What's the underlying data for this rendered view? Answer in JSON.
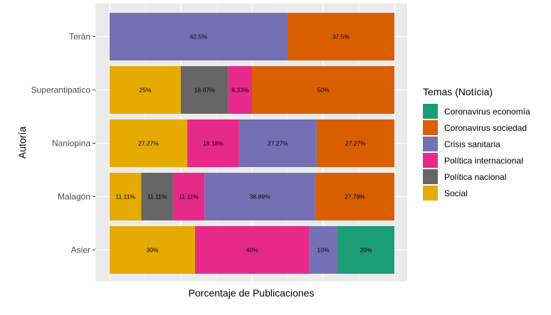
{
  "chart_data": {
    "type": "bar",
    "orientation": "horizontal",
    "stacked": true,
    "xlabel": "Porcentaje de Publicaciones",
    "ylabel": "Autoría",
    "xlim": [
      0,
      1
    ],
    "grid": true,
    "legend_position": "right",
    "legend_title": "Temas (Notícia)",
    "categories": [
      "Terán",
      "Superantipatico",
      "Naniopina",
      "Malagón",
      "Asier"
    ],
    "series": [
      {
        "name": "Coronavirus economía",
        "color": "#1b9e77",
        "values": [
          0,
          0,
          0,
          0,
          0.2
        ],
        "labels": [
          "",
          "",
          "",
          "",
          "20%"
        ]
      },
      {
        "name": "Coronavirus sociedad",
        "color": "#d95f02",
        "values": [
          0.375,
          0.5,
          0.2727,
          0.2778,
          0
        ],
        "labels": [
          "37.5%",
          "50%",
          "27.27%",
          "27.78%",
          ""
        ]
      },
      {
        "name": "Crisis sanitaria",
        "color": "#7570b3",
        "values": [
          0.625,
          0,
          0.2727,
          0.3889,
          0.1
        ],
        "labels": [
          "62.5%",
          "",
          "27.27%",
          "38.89%",
          "10%"
        ]
      },
      {
        "name": "Política internacional",
        "color": "#e7298a",
        "values": [
          0,
          0.0833,
          0.1818,
          0.1111,
          0.4
        ],
        "labels": [
          "",
          "8.33%",
          "18.18%",
          "11.11%",
          "40%"
        ]
      },
      {
        "name": "Política nacional",
        "color": "#666666",
        "values": [
          0,
          0.1667,
          0,
          0.1111,
          0
        ],
        "labels": [
          "",
          "16.67%",
          "",
          "11.11%",
          ""
        ]
      },
      {
        "name": "Social",
        "color": "#e6ab02",
        "values": [
          0,
          0.25,
          0.2727,
          0.1111,
          0.3
        ],
        "labels": [
          "",
          "25%",
          "27.27%",
          "11.11%",
          "30%"
        ]
      }
    ]
  }
}
